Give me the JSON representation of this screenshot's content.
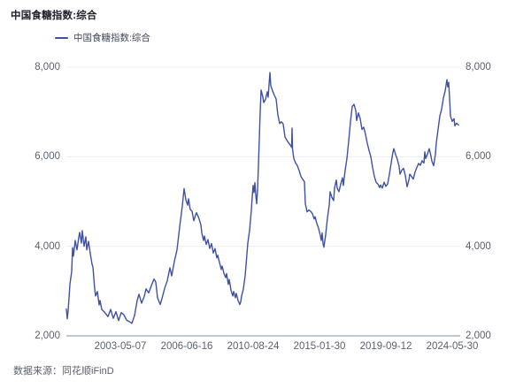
{
  "title": "中国食糖指数:综合",
  "legend": {
    "label": "中国食糖指数:综合",
    "marker_color": "#3F51A3"
  },
  "source": "数据来源：同花顺iFinD",
  "colors": {
    "line": "#3F51A3",
    "grid": "#ECEDF2",
    "axis": "#C2C6D0",
    "tick_text": "#5C606E",
    "title_text": "#1E1E2A"
  },
  "chart_data": {
    "type": "line",
    "title": "中国食糖指数:综合",
    "series_name": "中国食糖指数:综合",
    "legend_position": "top-left",
    "grid": "horizontal",
    "ylim": [
      2000,
      8000
    ],
    "y_ticks": [
      2000,
      4000,
      6000,
      8000
    ],
    "y_tick_labels": [
      "2,000",
      "4,000",
      "6,000",
      "8,000"
    ],
    "y_axis_sides": [
      "left",
      "right"
    ],
    "x_tick_labels": [
      "2003-05-07",
      "2006-06-16",
      "2010-08-24",
      "2015-01-30",
      "2019-09-12",
      "2024-05-30"
    ],
    "points": [
      [
        75,
        2600
      ],
      [
        76,
        2380
      ],
      [
        77,
        2560
      ],
      [
        79,
        3150
      ],
      [
        81,
        3440
      ],
      [
        82,
        3970
      ],
      [
        83,
        3780
      ],
      [
        85,
        4130
      ],
      [
        87,
        3920
      ],
      [
        89,
        4200
      ],
      [
        90,
        4310
      ],
      [
        92,
        4070
      ],
      [
        93,
        4350
      ],
      [
        95,
        4000
      ],
      [
        97,
        4210
      ],
      [
        98,
        3920
      ],
      [
        100,
        4110
      ],
      [
        102,
        3840
      ],
      [
        104,
        3600
      ],
      [
        105,
        3540
      ],
      [
        107,
        3050
      ],
      [
        108,
        2890
      ],
      [
        110,
        2990
      ],
      [
        112,
        2690
      ],
      [
        113,
        2790
      ],
      [
        115,
        2590
      ],
      [
        118,
        2530
      ],
      [
        122,
        2430
      ],
      [
        125,
        2590
      ],
      [
        128,
        2390
      ],
      [
        131,
        2540
      ],
      [
        134,
        2340
      ],
      [
        137,
        2520
      ],
      [
        140,
        2470
      ],
      [
        143,
        2350
      ],
      [
        146,
        2320
      ],
      [
        149,
        2280
      ],
      [
        152,
        2450
      ],
      [
        155,
        2790
      ],
      [
        157,
        2930
      ],
      [
        160,
        2730
      ],
      [
        163,
        2880
      ],
      [
        165,
        3050
      ],
      [
        168,
        2960
      ],
      [
        171,
        3120
      ],
      [
        174,
        3270
      ],
      [
        176,
        3200
      ],
      [
        178,
        2850
      ],
      [
        181,
        2700
      ],
      [
        183,
        2830
      ],
      [
        186,
        3060
      ],
      [
        189,
        3230
      ],
      [
        192,
        3520
      ],
      [
        194,
        3340
      ],
      [
        197,
        3660
      ],
      [
        200,
        3920
      ],
      [
        203,
        4430
      ],
      [
        206,
        4900
      ],
      [
        208,
        5290
      ],
      [
        210,
        5040
      ],
      [
        212,
        4920
      ],
      [
        213,
        5060
      ],
      [
        215,
        4820
      ],
      [
        217,
        4780
      ],
      [
        219,
        4570
      ],
      [
        221,
        4700
      ],
      [
        222,
        4750
      ],
      [
        224,
        4660
      ],
      [
        225,
        4610
      ],
      [
        227,
        4480
      ],
      [
        228,
        4300
      ],
      [
        230,
        4130
      ],
      [
        231,
        4230
      ],
      [
        233,
        4040
      ],
      [
        235,
        4150
      ],
      [
        237,
        3950
      ],
      [
        239,
        4060
      ],
      [
        241,
        3850
      ],
      [
        243,
        3950
      ],
      [
        245,
        3740
      ],
      [
        246,
        3800
      ],
      [
        248,
        3640
      ],
      [
        250,
        3480
      ],
      [
        251,
        3560
      ],
      [
        253,
        3400
      ],
      [
        255,
        3300
      ],
      [
        256,
        3390
      ],
      [
        258,
        3150
      ],
      [
        259,
        3260
      ],
      [
        261,
        3020
      ],
      [
        263,
        2890
      ],
      [
        264,
        2990
      ],
      [
        266,
        2850
      ],
      [
        267,
        2950
      ],
      [
        269,
        2790
      ],
      [
        271,
        2700
      ],
      [
        272,
        2760
      ],
      [
        273,
        2890
      ],
      [
        275,
        3050
      ],
      [
        277,
        3340
      ],
      [
        278,
        3580
      ],
      [
        280,
        4070
      ],
      [
        282,
        4350
      ],
      [
        284,
        4800
      ],
      [
        285,
        5100
      ],
      [
        286,
        5360
      ],
      [
        287,
        5200
      ],
      [
        288,
        5420
      ],
      [
        289,
        5150
      ],
      [
        290,
        4950
      ],
      [
        291,
        5250
      ],
      [
        292,
        5800
      ],
      [
        293,
        6400
      ],
      [
        294,
        7000
      ],
      [
        295,
        7490
      ],
      [
        297,
        7330
      ],
      [
        298,
        7210
      ],
      [
        300,
        7280
      ],
      [
        302,
        7450
      ],
      [
        303,
        7330
      ],
      [
        305,
        7880
      ],
      [
        306,
        7590
      ],
      [
        308,
        7470
      ],
      [
        310,
        7370
      ],
      [
        312,
        7290
      ],
      [
        314,
        6930
      ],
      [
        316,
        6740
      ],
      [
        318,
        6780
      ],
      [
        320,
        6730
      ],
      [
        322,
        6440
      ],
      [
        325,
        6340
      ],
      [
        328,
        6260
      ],
      [
        329.5,
        6210
      ],
      [
        330,
        6640
      ],
      [
        330.5,
        6180
      ],
      [
        332,
        5960
      ],
      [
        334,
        5860
      ],
      [
        336,
        5800
      ],
      [
        338,
        5690
      ],
      [
        340,
        5560
      ],
      [
        342,
        5500
      ],
      [
        344,
        5440
      ],
      [
        345,
        4950
      ],
      [
        347,
        4770
      ],
      [
        349,
        4810
      ],
      [
        351,
        4780
      ],
      [
        353,
        4730
      ],
      [
        355,
        4610
      ],
      [
        356,
        4660
      ],
      [
        358,
        4510
      ],
      [
        360,
        4400
      ],
      [
        362,
        4240
      ],
      [
        363,
        4130
      ],
      [
        364,
        4300
      ],
      [
        365,
        4060
      ],
      [
        366,
        3980
      ],
      [
        368,
        4260
      ],
      [
        370,
        4630
      ],
      [
        372,
        4920
      ],
      [
        373,
        5220
      ],
      [
        375,
        5090
      ],
      [
        377,
        5020
      ],
      [
        378,
        5300
      ],
      [
        380,
        5480
      ],
      [
        381,
        5300
      ],
      [
        383,
        5220
      ],
      [
        385,
        5390
      ],
      [
        387,
        5530
      ],
      [
        388,
        5360
      ],
      [
        390,
        5700
      ],
      [
        392,
        5960
      ],
      [
        394,
        6350
      ],
      [
        396,
        6780
      ],
      [
        398,
        7120
      ],
      [
        400,
        7170
      ],
      [
        402,
        7030
      ],
      [
        403,
        6810
      ],
      [
        405,
        6980
      ],
      [
        407,
        6850
      ],
      [
        409,
        6610
      ],
      [
        411,
        6660
      ],
      [
        413,
        6500
      ],
      [
        415,
        6300
      ],
      [
        417,
        6140
      ],
      [
        419,
        6000
      ],
      [
        421,
        5760
      ],
      [
        423,
        5560
      ],
      [
        425,
        5430
      ],
      [
        427,
        5390
      ],
      [
        429,
        5310
      ],
      [
        430,
        5370
      ],
      [
        432,
        5300
      ],
      [
        434,
        5430
      ],
      [
        436,
        5340
      ],
      [
        438,
        5390
      ],
      [
        440,
        5610
      ],
      [
        442,
        5860
      ],
      [
        444,
        6100
      ],
      [
        445,
        6180
      ],
      [
        447,
        6050
      ],
      [
        449,
        5940
      ],
      [
        451,
        5780
      ],
      [
        452,
        5610
      ],
      [
        454,
        5700
      ],
      [
        456,
        5740
      ],
      [
        458,
        5580
      ],
      [
        460,
        5330
      ],
      [
        462,
        5480
      ],
      [
        463,
        5610
      ],
      [
        465,
        5560
      ],
      [
        467,
        5500
      ],
      [
        469,
        5660
      ],
      [
        471,
        5760
      ],
      [
        473,
        5850
      ],
      [
        475,
        5810
      ],
      [
        477,
        5910
      ],
      [
        479,
        5860
      ],
      [
        480,
        6110
      ],
      [
        481,
        5960
      ],
      [
        483,
        6060
      ],
      [
        485,
        6180
      ],
      [
        487,
        6010
      ],
      [
        488,
        5900
      ],
      [
        490,
        5800
      ],
      [
        492,
        6060
      ],
      [
        493,
        6310
      ],
      [
        495,
        6610
      ],
      [
        497,
        6910
      ],
      [
        499,
        7060
      ],
      [
        501,
        7310
      ],
      [
        503,
        7470
      ],
      [
        505,
        7720
      ],
      [
        506,
        7560
      ],
      [
        507,
        7660
      ],
      [
        508,
        7310
      ],
      [
        509,
        6910
      ],
      [
        511,
        6790
      ],
      [
        513,
        6850
      ],
      [
        514,
        6690
      ],
      [
        516,
        6750
      ],
      [
        518,
        6710
      ]
    ]
  }
}
